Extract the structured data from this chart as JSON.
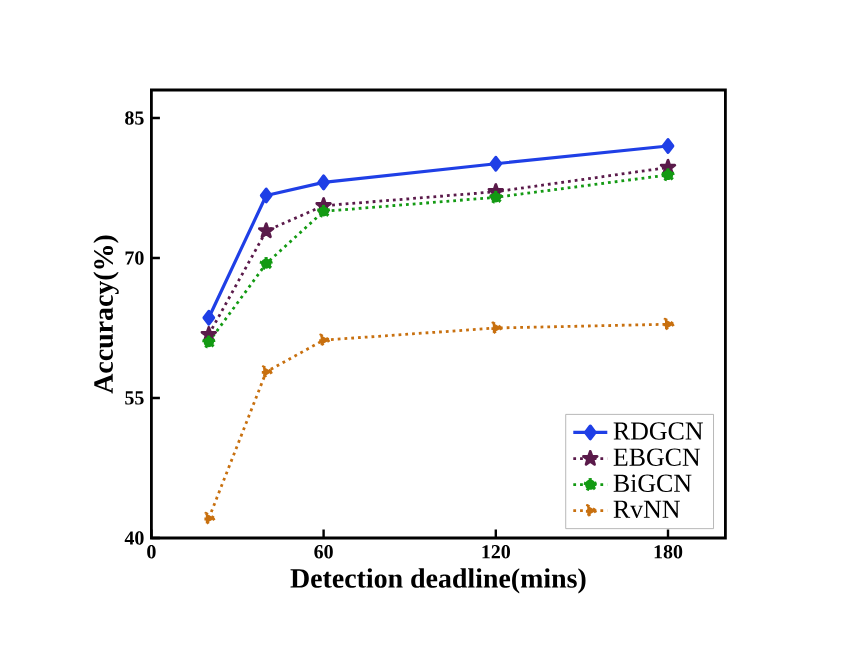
{
  "chart_data": {
    "type": "line",
    "xlabel": "Detection deadline(mins)",
    "ylabel": "Accuracy(%)",
    "x": [
      20,
      40,
      60,
      120,
      180
    ],
    "series": [
      {
        "name": "RDGCN",
        "color": "#1f3fe6",
        "values": [
          63.6,
          76.7,
          78.1,
          80.1,
          82.0
        ],
        "marker": "diamond",
        "line_style": "solid"
      },
      {
        "name": "EBGCN",
        "color": "#5a1a4a",
        "values": [
          61.8,
          72.9,
          75.6,
          77.1,
          79.7
        ],
        "marker": "star",
        "line_style": "dotted"
      },
      {
        "name": "BiGCN",
        "color": "#139a13",
        "values": [
          61.0,
          69.4,
          75.0,
          76.5,
          78.9
        ],
        "marker": "circle",
        "line_style": "dotted"
      },
      {
        "name": "RvNN",
        "color": "#c8700f",
        "values": [
          42.1,
          57.8,
          61.2,
          62.5,
          62.9
        ],
        "marker": "triangle",
        "line_style": "dotted"
      }
    ],
    "xlim": [
      0,
      200
    ],
    "xticks": [
      0,
      60,
      120,
      180
    ],
    "ylim": [
      40,
      88
    ],
    "yticks": [
      40,
      55,
      70,
      85
    ],
    "grid": false,
    "legend": "bottom right"
  }
}
